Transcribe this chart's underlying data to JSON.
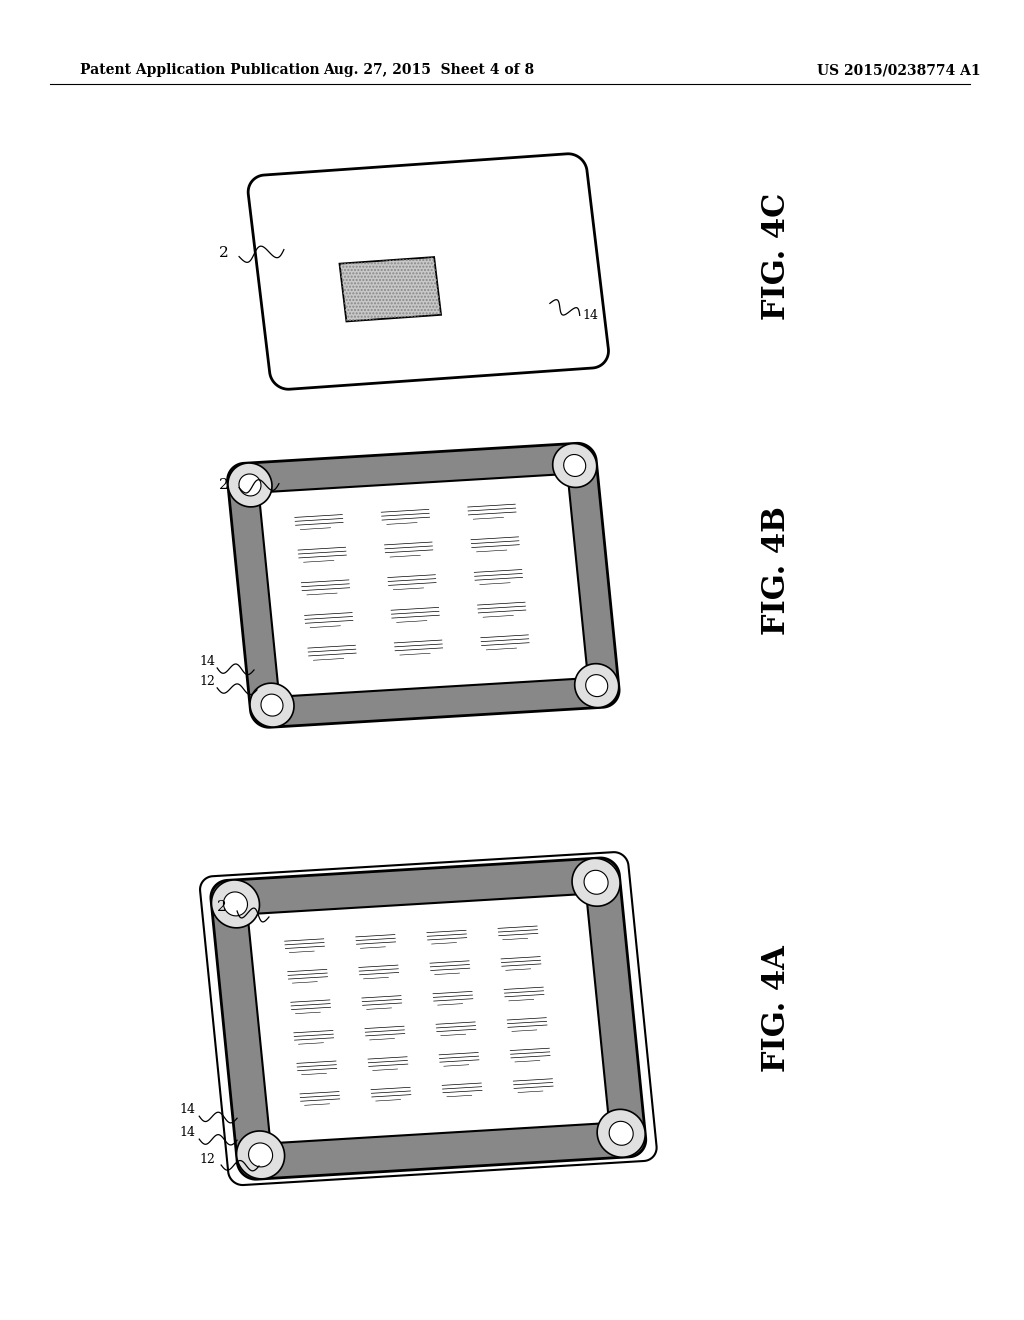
{
  "background_color": "#ffffff",
  "header_left": "Patent Application Publication",
  "header_middle": "Aug. 27, 2015  Sheet 4 of 8",
  "header_right": "US 2015/0238774 A1"
}
